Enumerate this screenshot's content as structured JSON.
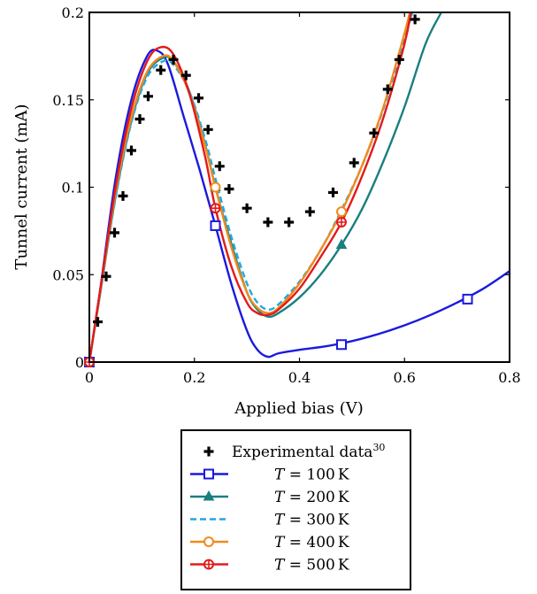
{
  "chart_data": {
    "type": "line",
    "xlabel": "Applied bias (V)",
    "ylabel": "Tunnel current (mA)",
    "xlim": [
      0,
      0.8
    ],
    "ylim": [
      0,
      0.2
    ],
    "x_ticks": [
      {
        "value": 0,
        "label": "0"
      },
      {
        "value": 0.2,
        "label": "0.2"
      },
      {
        "value": 0.4,
        "label": "0.4"
      },
      {
        "value": 0.6,
        "label": "0.6"
      },
      {
        "value": 0.8,
        "label": "0.8"
      }
    ],
    "y_ticks": [
      {
        "value": 0,
        "label": "0"
      },
      {
        "value": 0.05,
        "label": "0.05"
      },
      {
        "value": 0.1,
        "label": "0.1"
      },
      {
        "value": 0.15,
        "label": "0.15"
      },
      {
        "value": 0.2,
        "label": "0.2"
      }
    ],
    "grid": false,
    "legend_position": "below",
    "experimental": {
      "name": "Experimental data",
      "superscript": "30",
      "color": "#000000",
      "marker": "plus",
      "x": [
        0,
        0.016,
        0.032,
        0.048,
        0.064,
        0.08,
        0.096,
        0.112,
        0.136,
        0.16,
        0.184,
        0.208,
        0.226,
        0.248,
        0.266,
        0.3,
        0.34,
        0.38,
        0.42,
        0.464,
        0.504,
        0.542,
        0.568,
        0.59,
        0.62
      ],
      "y": [
        0,
        0.023,
        0.049,
        0.074,
        0.095,
        0.121,
        0.139,
        0.152,
        0.167,
        0.173,
        0.164,
        0.151,
        0.133,
        0.112,
        0.099,
        0.088,
        0.08,
        0.08,
        0.086,
        0.097,
        0.114,
        0.131,
        0.156,
        0.173,
        0.196
      ]
    },
    "series": [
      {
        "name": "T = 100 K",
        "label_var": "T",
        "label_value": "100",
        "label_unit": "K",
        "color": "#1a1adf",
        "marker": "square",
        "x": [
          0,
          0.02,
          0.05,
          0.08,
          0.11,
          0.13,
          0.15,
          0.18,
          0.21,
          0.24,
          0.27,
          0.3,
          0.32,
          0.34,
          0.36,
          0.4,
          0.45,
          0.5,
          0.55,
          0.6,
          0.65,
          0.7,
          0.75,
          0.8
        ],
        "y": [
          0,
          0.04,
          0.105,
          0.15,
          0.175,
          0.178,
          0.17,
          0.14,
          0.11,
          0.078,
          0.045,
          0.018,
          0.007,
          0.003,
          0.005,
          0.007,
          0.009,
          0.012,
          0.016,
          0.021,
          0.027,
          0.034,
          0.042,
          0.052
        ],
        "marker_x": [
          0,
          0.24,
          0.48,
          0.72
        ],
        "marker_y": [
          0,
          0.078,
          0.01,
          0.036
        ]
      },
      {
        "name": "T = 200 K",
        "label_var": "T",
        "label_value": "200",
        "label_unit": "K",
        "color": "#1a7f7f",
        "marker": "triangle",
        "x": [
          0,
          0.02,
          0.05,
          0.08,
          0.11,
          0.14,
          0.16,
          0.19,
          0.22,
          0.24,
          0.27,
          0.3,
          0.32,
          0.34,
          0.36,
          0.4,
          0.44,
          0.48,
          0.52,
          0.56,
          0.6,
          0.64,
          0.67
        ],
        "y": [
          0,
          0.038,
          0.095,
          0.138,
          0.165,
          0.174,
          0.172,
          0.155,
          0.125,
          0.1,
          0.068,
          0.04,
          0.03,
          0.026,
          0.028,
          0.037,
          0.05,
          0.067,
          0.088,
          0.115,
          0.146,
          0.182,
          0.2
        ],
        "marker_x": [
          0,
          0.24,
          0.48
        ],
        "marker_y": [
          0,
          0.1,
          0.067
        ]
      },
      {
        "name": "T = 300 K",
        "label_var": "T",
        "label_value": "300",
        "label_unit": "K",
        "color": "#22a8e0",
        "marker": "none",
        "dashed": true,
        "x": [
          0,
          0.02,
          0.05,
          0.08,
          0.11,
          0.14,
          0.16,
          0.19,
          0.22,
          0.24,
          0.27,
          0.3,
          0.32,
          0.34,
          0.36,
          0.4,
          0.44,
          0.48,
          0.52,
          0.56,
          0.6,
          0.615
        ],
        "y": [
          0,
          0.038,
          0.094,
          0.137,
          0.163,
          0.172,
          0.17,
          0.155,
          0.128,
          0.105,
          0.072,
          0.045,
          0.034,
          0.03,
          0.033,
          0.046,
          0.064,
          0.087,
          0.113,
          0.145,
          0.185,
          0.2
        ],
        "marker_x": [],
        "marker_y": []
      },
      {
        "name": "T = 400 K",
        "label_var": "T",
        "label_value": "400",
        "label_unit": "K",
        "color": "#f08a1c",
        "marker": "circle",
        "x": [
          0,
          0.02,
          0.05,
          0.08,
          0.11,
          0.14,
          0.16,
          0.19,
          0.22,
          0.24,
          0.27,
          0.3,
          0.32,
          0.34,
          0.36,
          0.4,
          0.44,
          0.48,
          0.52,
          0.56,
          0.6,
          0.61
        ],
        "y": [
          0,
          0.039,
          0.097,
          0.14,
          0.166,
          0.175,
          0.172,
          0.154,
          0.124,
          0.1,
          0.066,
          0.04,
          0.031,
          0.028,
          0.031,
          0.045,
          0.064,
          0.086,
          0.113,
          0.146,
          0.188,
          0.2
        ],
        "marker_x": [
          0,
          0.24,
          0.48
        ],
        "marker_y": [
          0,
          0.1,
          0.086
        ]
      },
      {
        "name": "T = 500 K",
        "label_var": "T",
        "label_value": "500",
        "label_unit": "K",
        "color": "#e31a1a",
        "marker": "crosscircle",
        "x": [
          0,
          0.02,
          0.05,
          0.08,
          0.11,
          0.135,
          0.16,
          0.19,
          0.22,
          0.24,
          0.27,
          0.3,
          0.32,
          0.34,
          0.36,
          0.4,
          0.44,
          0.48,
          0.52,
          0.56,
          0.6,
          0.612
        ],
        "y": [
          0,
          0.04,
          0.1,
          0.145,
          0.172,
          0.18,
          0.176,
          0.154,
          0.118,
          0.088,
          0.055,
          0.034,
          0.028,
          0.027,
          0.03,
          0.042,
          0.06,
          0.08,
          0.107,
          0.14,
          0.182,
          0.2
        ],
        "marker_x": [
          0,
          0.24,
          0.48
        ],
        "marker_y": [
          0,
          0.088,
          0.08
        ]
      }
    ]
  }
}
